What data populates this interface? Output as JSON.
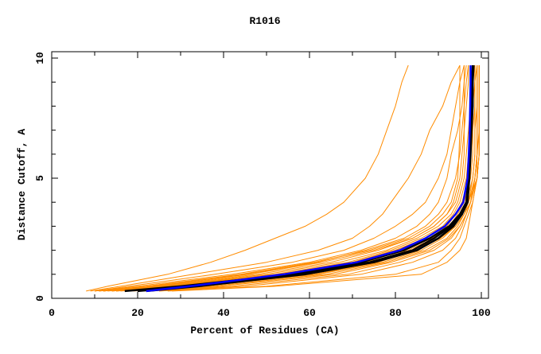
{
  "chart_data": {
    "type": "line",
    "title": "R1016",
    "xlabel": "Percent of Residues (CA)",
    "ylabel": "Distance Cutoff, A",
    "xlim": [
      0,
      100
    ],
    "ylim": [
      0,
      10
    ],
    "xticks": [
      "0",
      "20",
      "40",
      "60",
      "80",
      "100"
    ],
    "yticks": [
      "0",
      "5",
      "10"
    ],
    "grid": false,
    "colors": {
      "models": "#ff8c00",
      "highlight_black": "#000000",
      "highlight_blue": "#0000ff"
    },
    "y_cutoffs": [
      0.3,
      0.5,
      1,
      1.5,
      2,
      2.5,
      3,
      3.5,
      4,
      5,
      6,
      7,
      8,
      9,
      9.7
    ],
    "orange_series": [
      [
        8,
        13,
        27,
        37,
        45,
        52,
        59,
        64,
        68,
        73,
        76,
        78,
        80,
        81.5,
        83
      ],
      [
        9,
        16,
        33,
        50,
        62,
        70,
        74,
        77,
        79,
        83,
        86,
        88,
        91,
        93,
        95
      ],
      [
        10,
        18,
        38,
        56,
        68,
        75,
        80,
        84,
        87,
        90,
        92,
        93,
        94,
        95,
        96
      ],
      [
        10,
        20,
        42,
        60,
        72,
        80,
        85,
        88,
        90,
        92,
        93,
        94.5,
        95.5,
        96,
        96.5
      ],
      [
        11,
        22,
        45,
        62,
        73,
        82,
        87,
        90,
        92,
        94,
        95,
        95.5,
        96,
        96.5,
        97
      ],
      [
        12,
        24,
        48,
        65,
        76,
        84,
        89,
        92,
        93.5,
        95,
        95.5,
        96,
        96.5,
        97,
        97
      ],
      [
        12,
        25,
        50,
        67,
        78,
        85,
        90,
        93,
        94.5,
        96,
        96.5,
        97,
        97.5,
        97.5,
        98
      ],
      [
        13,
        26,
        52,
        69,
        79,
        86,
        91,
        93.5,
        95,
        96.5,
        97,
        97.5,
        98,
        98,
        98.5
      ],
      [
        14,
        28,
        54,
        70,
        80,
        87,
        92,
        94,
        95.5,
        97,
        97.5,
        98,
        98,
        98.5,
        98.5
      ],
      [
        15,
        29,
        55,
        72,
        81,
        88,
        92.5,
        94.5,
        96,
        97.5,
        98,
        98,
        98.5,
        98.5,
        99
      ],
      [
        15,
        30,
        57,
        73,
        82,
        88.5,
        93,
        95,
        96.5,
        98,
        98.5,
        98.5,
        99,
        99,
        99
      ],
      [
        16,
        31,
        58,
        74,
        83,
        89,
        93,
        95.5,
        97,
        98.5,
        99,
        99,
        99,
        99,
        99
      ],
      [
        17,
        32,
        59,
        75,
        84,
        90,
        93.5,
        95.5,
        97,
        99,
        99.5,
        99.5,
        99.5,
        99.5,
        99.5
      ],
      [
        18,
        34,
        61,
        76,
        85,
        90.5,
        94,
        96,
        97.5,
        99,
        99.5,
        99.5,
        99.5,
        99.5,
        99.5
      ],
      [
        19,
        35,
        62,
        77,
        86,
        91,
        94,
        96,
        97.5,
        98.5,
        99,
        99,
        99,
        99,
        99
      ],
      [
        20,
        37,
        64,
        78,
        87,
        92,
        94.5,
        96,
        97,
        98,
        98.5,
        98.5,
        98.5,
        98.5,
        98.5
      ],
      [
        21,
        39,
        66,
        79,
        88,
        92.5,
        95,
        96.5,
        97.5,
        98.5,
        99,
        99,
        99,
        99,
        99
      ],
      [
        23,
        42,
        69,
        81,
        89,
        93,
        95,
        96.5,
        97.5,
        98.5,
        99,
        99.5,
        99.5,
        99.5,
        99.5
      ],
      [
        25,
        45,
        72,
        84,
        91,
        94,
        95.5,
        96.5,
        97.5,
        99,
        99.5,
        99.5,
        99.5,
        99.5,
        99.5
      ],
      [
        27,
        50,
        80,
        90,
        93,
        95,
        96,
        97,
        98,
        99,
        99.5,
        99.5,
        99.5,
        99.5,
        99.5
      ],
      [
        28,
        52,
        86,
        92,
        95,
        96.5,
        97,
        97.5,
        98,
        99,
        99,
        99,
        99,
        99,
        99
      ],
      [
        11,
        22,
        44,
        61,
        74,
        83,
        88,
        91,
        93,
        94.5,
        94.8,
        95,
        95,
        95,
        95
      ],
      [
        12,
        23,
        46,
        63,
        75,
        84,
        89,
        92,
        94,
        95.5,
        96,
        96,
        96,
        96,
        96
      ],
      [
        14,
        27,
        53,
        70,
        80,
        87,
        91.5,
        94,
        96,
        97,
        97.2,
        97.4,
        97.5,
        97.5,
        97.5
      ]
    ],
    "black_series": [
      [
        17,
        30,
        56,
        72,
        82,
        88,
        92.5,
        95,
        96.5,
        97,
        97.3,
        97.5,
        97.8,
        98,
        98
      ],
      [
        20,
        33,
        58,
        74,
        84,
        89,
        93,
        95.5,
        96.8,
        97.2,
        97.5,
        97.7,
        98,
        98,
        98.2
      ],
      [
        22,
        34,
        59,
        75,
        85,
        90,
        93.5,
        95.5,
        96.7,
        97,
        97.2,
        97.4,
        97.6,
        97.8,
        98
      ]
    ],
    "blue_series": [
      22,
      32,
      54,
      71,
      81,
      87,
      91.5,
      94,
      95.8,
      96.8,
      97.1,
      97.3,
      97.4,
      97.5,
      97.5
    ]
  }
}
